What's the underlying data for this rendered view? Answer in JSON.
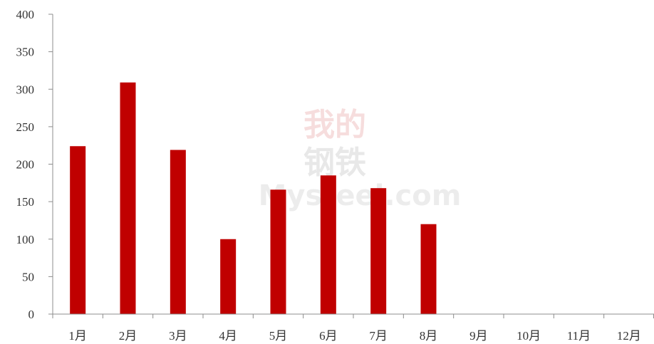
{
  "watermark": {
    "line1": "我的",
    "line2": "钢铁",
    "line3": "Mysteel.com"
  },
  "chart_data": {
    "type": "bar",
    "categories": [
      "1月",
      "2月",
      "3月",
      "4月",
      "5月",
      "6月",
      "7月",
      "8月",
      "9月",
      "10月",
      "11月",
      "12月"
    ],
    "values": [
      224,
      309,
      219,
      100,
      166,
      185,
      168,
      120,
      null,
      null,
      null,
      null
    ],
    "ylim": [
      0,
      400
    ],
    "yticks": [
      0,
      50,
      100,
      150,
      200,
      250,
      300,
      350,
      400
    ],
    "grid": false,
    "legend": "none",
    "bar_color": "#c00000"
  }
}
